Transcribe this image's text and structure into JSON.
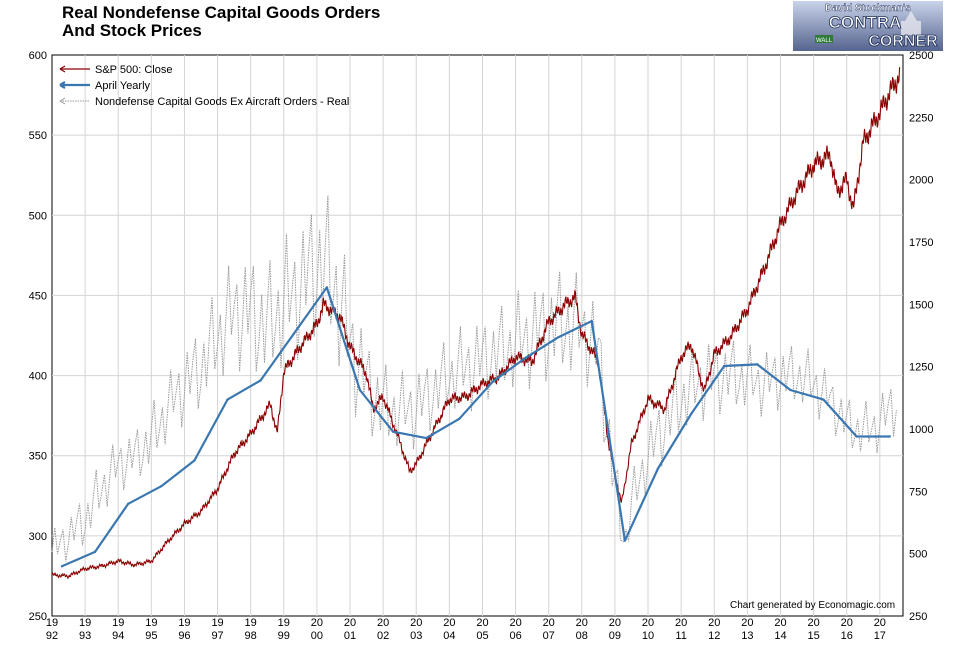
{
  "title_line1": "Real Nondefense Capital Goods Orders",
  "title_line2": "And Stock Prices",
  "logo": {
    "top_text": "David Stockman's",
    "word1": "CONTRA",
    "word2": "CORNER",
    "sign": "WALL"
  },
  "credit": "Chart generated by Economagic.com",
  "colors": {
    "sp500": "#8b0000",
    "yearly": "#3a77b0",
    "orders": "#999999",
    "grid": "#d4d4d4"
  },
  "chart_data": {
    "type": "line",
    "left_axis_ticks": [
      "600",
      "550",
      "500",
      "450",
      "400",
      "350",
      "300",
      "250"
    ],
    "right_axis_ticks": [
      "2500",
      "2250",
      "2000",
      "1750",
      "1500",
      "1250",
      "1000",
      "750",
      "500",
      "250"
    ],
    "x_ticks": [
      [
        "19",
        "92"
      ],
      [
        "19",
        "93"
      ],
      [
        "19",
        "94"
      ],
      [
        "19",
        "95"
      ],
      [
        "19",
        "96"
      ],
      [
        "19",
        "97"
      ],
      [
        "19",
        "98"
      ],
      [
        "19",
        "99"
      ],
      [
        "20",
        "00"
      ],
      [
        "20",
        "01"
      ],
      [
        "20",
        "02"
      ],
      [
        "20",
        "03"
      ],
      [
        "20",
        "04"
      ],
      [
        "20",
        "05"
      ],
      [
        "20",
        "06"
      ],
      [
        "20",
        "07"
      ],
      [
        "20",
        "08"
      ],
      [
        "20",
        "09"
      ],
      [
        "20",
        "10"
      ],
      [
        "20",
        "11"
      ],
      [
        "20",
        "12"
      ],
      [
        "20",
        "13"
      ],
      [
        "20",
        "14"
      ],
      [
        "20",
        "15"
      ],
      [
        "20",
        "16"
      ],
      [
        "20",
        "17"
      ]
    ],
    "xlim": [
      1992.0,
      2017.7
    ],
    "ylim_left": [
      250,
      600
    ],
    "ylim_right": [
      250,
      2500
    ],
    "legend": [
      {
        "label": "S&P 500: Close",
        "series": "sp500"
      },
      {
        "label": "April Yearly",
        "series": "yearly"
      },
      {
        "label": "Nondefense Capital Goods Ex Aircraft Orders - Real",
        "series": "orders"
      }
    ],
    "legend_position": "top-left",
    "grid": true,
    "series": [
      {
        "name": "S&P 500: Close",
        "axis": "right",
        "style": "solid",
        "x": [
          1992.0,
          1992.5,
          1993.0,
          1993.5,
          1994.0,
          1994.5,
          1995.0,
          1995.5,
          1996.0,
          1996.5,
          1997.0,
          1997.5,
          1998.0,
          1998.6,
          1998.8,
          1999.0,
          1999.5,
          2000.0,
          2000.2,
          2000.7,
          2001.0,
          2001.5,
          2001.7,
          2002.0,
          2002.5,
          2002.8,
          2003.0,
          2003.5,
          2004.0,
          2004.5,
          2005.0,
          2005.5,
          2006.0,
          2006.5,
          2007.0,
          2007.5,
          2007.8,
          2008.0,
          2008.5,
          2008.8,
          2009.0,
          2009.2,
          2009.5,
          2010.0,
          2010.5,
          2011.0,
          2011.3,
          2011.7,
          2012.0,
          2012.5,
          2013.0,
          2013.5,
          2014.0,
          2014.5,
          2015.0,
          2015.5,
          2015.7,
          2016.0,
          2016.2,
          2016.5,
          2017.0,
          2017.3,
          2017.6
        ],
        "y": [
          415,
          410,
          440,
          450,
          470,
          455,
          470,
          550,
          620,
          670,
          760,
          900,
          980,
          1100,
          980,
          1230,
          1330,
          1420,
          1500,
          1450,
          1330,
          1220,
          1080,
          1130,
          950,
          830,
          860,
          990,
          1120,
          1130,
          1180,
          1210,
          1290,
          1270,
          1430,
          1500,
          1530,
          1380,
          1270,
          950,
          820,
          700,
          940,
          1120,
          1080,
          1290,
          1340,
          1150,
          1300,
          1370,
          1480,
          1640,
          1820,
          1950,
          2060,
          2100,
          1950,
          2000,
          1880,
          2150,
          2270,
          2350,
          2420
        ]
      },
      {
        "name": "April Yearly",
        "axis": "left",
        "style": "solid-thick",
        "x": [
          1992.3,
          1993.3,
          1994.3,
          1995.3,
          1996.3,
          1997.3,
          1998.3,
          1999.3,
          2000.3,
          2001.3,
          2002.3,
          2003.3,
          2004.3,
          2005.3,
          2006.3,
          2007.3,
          2008.3,
          2009.3,
          2010.3,
          2011.3,
          2012.3,
          2013.3,
          2014.3,
          2015.3,
          2016.3,
          2017.3
        ],
        "y": [
          281,
          290,
          320,
          331,
          347,
          385,
          397,
          426,
          455,
          391,
          365,
          361,
          373,
          396,
          411,
          424,
          434,
          297,
          342,
          376,
          406,
          407,
          391,
          385,
          362,
          362
        ]
      },
      {
        "name": "Nondefense Capital Goods Ex Aircraft Orders - Real",
        "axis": "left",
        "style": "dotted",
        "x": [
          1992.0,
          1992.5,
          1993.0,
          1993.5,
          1994.0,
          1994.5,
          1995.0,
          1995.5,
          1996.0,
          1996.5,
          1997.0,
          1997.5,
          1998.0,
          1998.5,
          1999.0,
          1999.5,
          2000.0,
          2000.5,
          2001.0,
          2001.5,
          2002.0,
          2002.5,
          2003.0,
          2003.5,
          2004.0,
          2004.5,
          2005.0,
          2005.5,
          2006.0,
          2006.5,
          2007.0,
          2007.5,
          2008.0,
          2008.5,
          2009.0,
          2009.3,
          2009.5,
          2010.0,
          2010.5,
          2011.0,
          2011.5,
          2012.0,
          2012.5,
          2013.0,
          2013.5,
          2014.0,
          2014.5,
          2015.0,
          2015.5,
          2016.0,
          2016.5,
          2017.0,
          2017.5
        ],
        "y": [
          290,
          300,
          310,
          330,
          345,
          350,
          360,
          380,
          395,
          405,
          425,
          440,
          440,
          430,
          445,
          455,
          470,
          460,
          420,
          395,
          380,
          378,
          380,
          390,
          400,
          405,
          410,
          415,
          420,
          425,
          430,
          432,
          430,
          415,
          330,
          295,
          320,
          350,
          370,
          385,
          395,
          400,
          400,
          398,
          395,
          400,
          400,
          395,
          385,
          370,
          365,
          370,
          385
        ],
        "amplitude": [
          20,
          20,
          25,
          25,
          25,
          25,
          30,
          30,
          35,
          40,
          45,
          50,
          55,
          55,
          60,
          60,
          70,
          70,
          55,
          45,
          40,
          35,
          35,
          35,
          35,
          40,
          40,
          40,
          45,
          45,
          50,
          50,
          45,
          45,
          35,
          20,
          25,
          30,
          35,
          35,
          35,
          35,
          35,
          30,
          30,
          30,
          28,
          28,
          25,
          25,
          25,
          25,
          30
        ]
      }
    ]
  }
}
